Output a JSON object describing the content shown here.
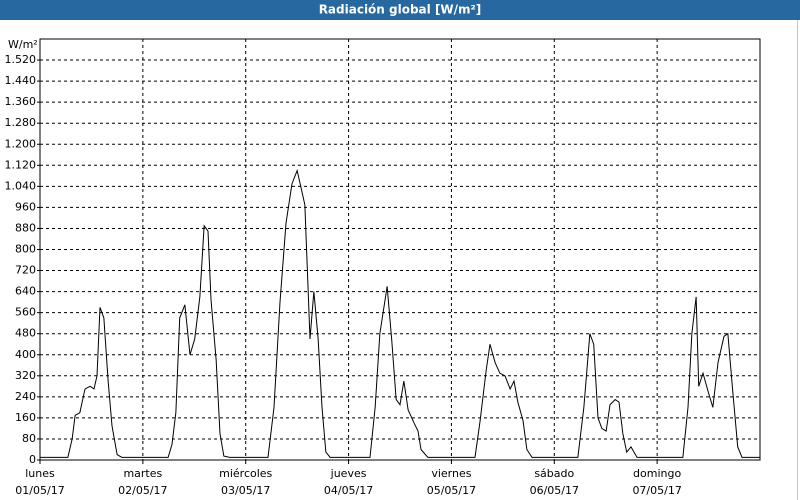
{
  "chart_data": {
    "type": "line",
    "title": "Radiación global [W/m²]",
    "ylabel": "W/m²",
    "color": "#000000",
    "grid": true,
    "x": [
      0,
      6.5,
      7.5,
      8.2,
      9.3,
      10.5,
      11.7,
      12.6,
      13.3,
      14,
      14.9,
      15.9,
      16.8,
      18,
      19.1,
      29.9,
      30.8,
      31.7,
      32.6,
      33.8,
      35,
      36.1,
      37.3,
      38.3,
      39.2,
      39.9,
      41.1,
      42,
      42.9,
      44.3,
      53.2,
      54.6,
      56,
      57.4,
      58.8,
      60,
      60.7,
      61.8,
      63,
      63.9,
      64.9,
      65.8,
      66.7,
      67.7,
      77,
      78.2,
      79.3,
      81,
      82.1,
      83.1,
      84,
      84.9,
      85.9,
      87.3,
      88.2,
      88.9,
      90.5,
      101.5,
      102.7,
      104.1,
      105,
      106.2,
      107.3,
      108.5,
      109.7,
      110.6,
      111.5,
      112.7,
      113.6,
      114.8,
      125.5,
      126.9,
      128.3,
      129.2,
      130.2,
      131.1,
      132.1,
      133,
      134.2,
      135.1,
      136,
      136.9,
      137.9,
      139.3,
      150,
      151.2,
      152.1,
      153.1,
      153.7,
      154.7,
      155.9,
      157,
      158.2,
      159.6,
      160.5,
      161.7,
      162.8,
      163.8,
      168
    ],
    "values": [
      10,
      10,
      80,
      170,
      180,
      270,
      280,
      270,
      320,
      580,
      540,
      300,
      130,
      20,
      10,
      10,
      60,
      180,
      540,
      590,
      400,
      460,
      620,
      890,
      870,
      610,
      380,
      100,
      15,
      10,
      10,
      200,
      600,
      900,
      1050,
      1100,
      1050,
      970,
      460,
      640,
      460,
      200,
      30,
      10,
      10,
      200,
      480,
      660,
      450,
      230,
      210,
      300,
      190,
      140,
      110,
      40,
      10,
      10,
      150,
      340,
      440,
      370,
      330,
      320,
      270,
      300,
      220,
      150,
      40,
      10,
      10,
      200,
      480,
      440,
      160,
      120,
      110,
      210,
      230,
      220,
      100,
      30,
      50,
      10,
      10,
      200,
      480,
      620,
      280,
      330,
      260,
      200,
      370,
      470,
      480,
      250,
      50,
      10,
      10
    ],
    "xlim": [
      0,
      168
    ],
    "xticks": [
      {
        "value": 0,
        "label": "lunes"
      },
      {
        "value": 24,
        "label": "martes"
      },
      {
        "value": 48,
        "label": "miércoles"
      },
      {
        "value": 72,
        "label": "jueves"
      },
      {
        "value": 96,
        "label": "viernes"
      },
      {
        "value": 120,
        "label": "sábado"
      },
      {
        "value": 144,
        "label": "domingo"
      }
    ],
    "xtick_dates": [
      "01/05/17",
      "02/05/17",
      "03/05/17",
      "04/05/17",
      "05/05/17",
      "06/05/17",
      "07/05/17"
    ],
    "ylim": [
      0,
      1600
    ],
    "yticks": [
      0,
      80,
      160,
      240,
      320,
      400,
      480,
      560,
      640,
      720,
      800,
      880,
      960,
      {
        "value": 1040,
        "label": "1.040"
      },
      {
        "value": 1120,
        "label": "1.120"
      },
      {
        "value": 1200,
        "label": "1.200"
      },
      {
        "value": 1280,
        "label": "1.280"
      },
      {
        "value": 1360,
        "label": "1.360"
      },
      {
        "value": 1440,
        "label": "1.440"
      },
      {
        "value": 1520,
        "label": "1.520"
      }
    ]
  }
}
